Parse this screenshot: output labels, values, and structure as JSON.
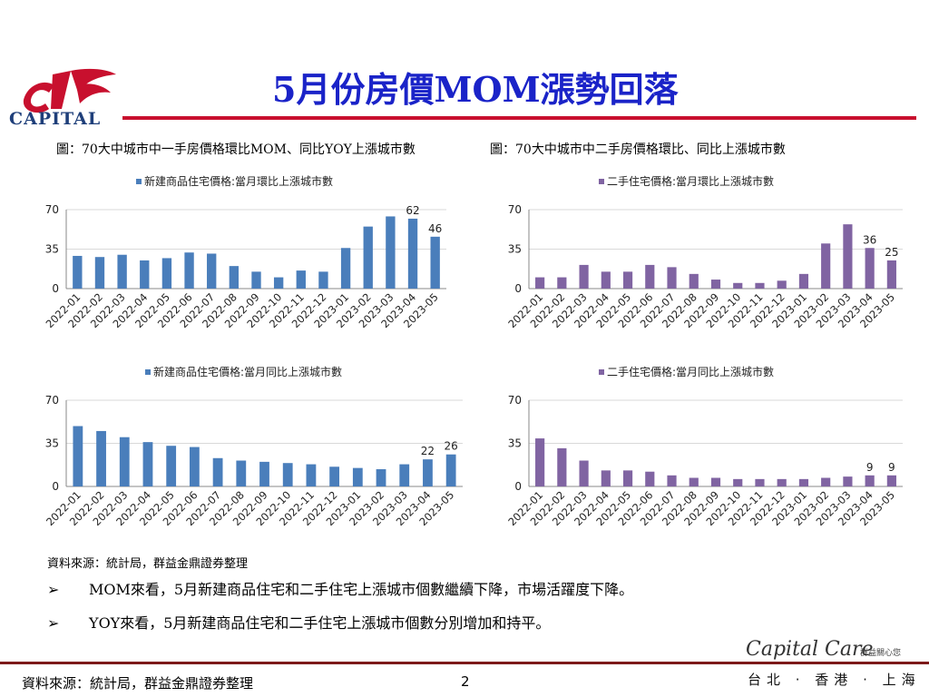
{
  "logo": {
    "text": "CAPITAL"
  },
  "title": "5月份房價MOM漲勢回落",
  "captions": {
    "left": "圖：70大中城市中一手房價格環比MOM、同比YOY上漲城市數",
    "right": "圖：70大中城市中二手房價格環比、同比上漲城市數"
  },
  "colors": {
    "blue": "#4a7ebb",
    "purple": "#8064a2",
    "title": "#1a23c8",
    "rule": "#c8102e"
  },
  "chart_data": [
    {
      "type": "bar",
      "legend": "新建商品住宅價格:當月環比上漲城市數",
      "categories": [
        "2022-01",
        "2022-02",
        "2022-03",
        "2022-04",
        "2022-05",
        "2022-06",
        "2022-07",
        "2022-08",
        "2022-09",
        "2022-10",
        "2022-11",
        "2022-12",
        "2023-01",
        "2023-02",
        "2023-03",
        "2023-04",
        "2023-05"
      ],
      "values": [
        29,
        28,
        30,
        25,
        27,
        32,
        31,
        20,
        15,
        10,
        16,
        15,
        36,
        55,
        64,
        62,
        46
      ],
      "labeled": [
        15,
        16
      ],
      "yticks": [
        0,
        35,
        70
      ],
      "ylim": [
        0,
        70
      ],
      "color": "#4a7ebb"
    },
    {
      "type": "bar",
      "legend": "二手住宅價格:當月環比上漲城市數",
      "categories": [
        "2022-01",
        "2022-02",
        "2022-03",
        "2022-04",
        "2022-05",
        "2022-06",
        "2022-07",
        "2022-08",
        "2022-09",
        "2022-10",
        "2022-11",
        "2022-12",
        "2023-01",
        "2023-02",
        "2023-03",
        "2023-04",
        "2023-05"
      ],
      "values": [
        10,
        10,
        21,
        15,
        15,
        21,
        19,
        13,
        8,
        5,
        5,
        7,
        13,
        40,
        57,
        36,
        25
      ],
      "labeled": [
        15,
        16
      ],
      "yticks": [
        0,
        35,
        70
      ],
      "ylim": [
        0,
        70
      ],
      "color": "#8064a2"
    },
    {
      "type": "bar",
      "legend": "新建商品住宅價格:當月同比上漲城市數",
      "categories": [
        "2022-01",
        "2022-02",
        "2022-03",
        "2022-04",
        "2022-05",
        "2022-06",
        "2022-07",
        "2022-08",
        "2022-09",
        "2022-10",
        "2022-11",
        "2022-12",
        "2023-01",
        "2023-02",
        "2023-03",
        "2023-04",
        "2023-05"
      ],
      "values": [
        49,
        45,
        40,
        36,
        33,
        32,
        23,
        21,
        20,
        19,
        18,
        16,
        15,
        14,
        18,
        22,
        26
      ],
      "labeled": [
        15,
        16
      ],
      "yticks": [
        0,
        35,
        70
      ],
      "ylim": [
        0,
        70
      ],
      "color": "#4a7ebb"
    },
    {
      "type": "bar",
      "legend": "二手住宅價格:當月同比上漲城市數",
      "categories": [
        "2022-01",
        "2022-02",
        "2022-03",
        "2022-04",
        "2022-05",
        "2022-06",
        "2022-07",
        "2022-08",
        "2022-09",
        "2022-10",
        "2022-11",
        "2022-12",
        "2023-01",
        "2023-02",
        "2023-03",
        "2023-04",
        "2023-05"
      ],
      "values": [
        39,
        31,
        21,
        13,
        13,
        12,
        9,
        7,
        7,
        6,
        6,
        6,
        6,
        7,
        8,
        9,
        9
      ],
      "labeled": [
        15,
        16
      ],
      "yticks": [
        0,
        35,
        70
      ],
      "ylim": [
        0,
        70
      ],
      "color": "#8064a2"
    }
  ],
  "source_note": "資料來源：統計局，群益金鼎證券整理",
  "bullets": [
    {
      "mark": "➢",
      "text": "MOM來看，5月新建商品住宅和二手住宅上漲城市個數繼續下降，市場活躍度下降。"
    },
    {
      "mark": "➢",
      "text": "YOY來看，5月新建商品住宅和二手住宅上漲城市個數分別增加和持平。"
    }
  ],
  "footer": {
    "source": "資料來源：統計局，群益金鼎證券整理",
    "page": "2",
    "brand": "Capital Care",
    "brand_sub": "群益關心您",
    "cities": "台北 · 香港 · 上海"
  }
}
